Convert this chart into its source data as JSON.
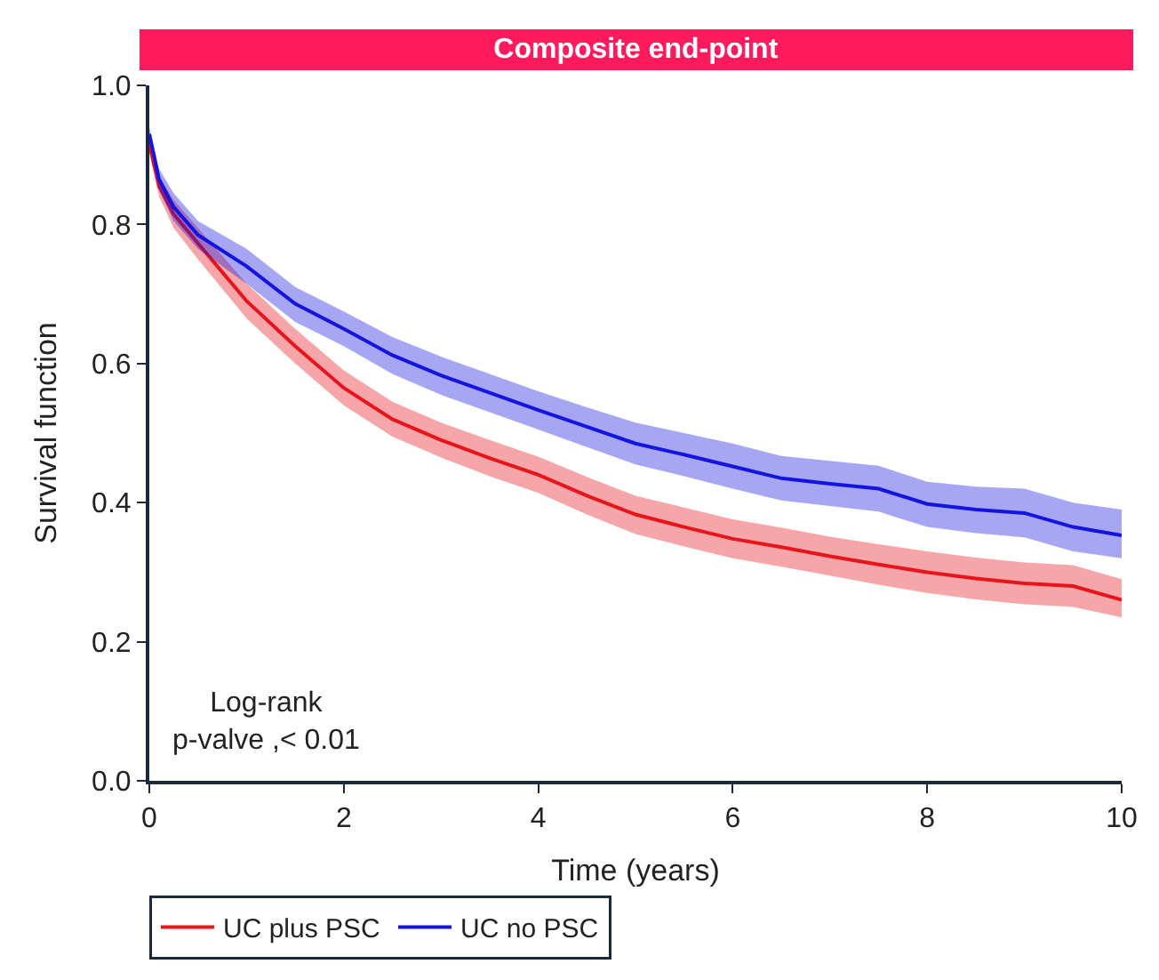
{
  "chart_data": {
    "type": "line",
    "title": "Composite end-point",
    "xlabel": "Time (years)",
    "ylabel": "Survival function",
    "x": [
      0,
      0.1,
      0.25,
      0.5,
      1,
      1.5,
      2,
      2.5,
      3,
      3.5,
      4,
      4.5,
      5,
      5.5,
      6,
      6.5,
      7,
      7.5,
      8,
      8.5,
      9,
      9.5,
      10
    ],
    "series": [
      {
        "name": "UC plus PSC",
        "color": "#e8141c",
        "values": [
          0.915,
          0.855,
          0.815,
          0.773,
          0.69,
          0.625,
          0.565,
          0.52,
          0.49,
          0.464,
          0.44,
          0.41,
          0.383,
          0.365,
          0.348,
          0.336,
          0.323,
          0.311,
          0.3,
          0.291,
          0.284,
          0.28,
          0.26
        ],
        "lower": [
          0.905,
          0.84,
          0.795,
          0.75,
          0.665,
          0.6,
          0.54,
          0.495,
          0.465,
          0.438,
          0.414,
          0.383,
          0.355,
          0.337,
          0.32,
          0.308,
          0.295,
          0.282,
          0.27,
          0.261,
          0.254,
          0.25,
          0.235
        ],
        "upper": [
          0.925,
          0.87,
          0.835,
          0.795,
          0.715,
          0.65,
          0.59,
          0.545,
          0.515,
          0.49,
          0.466,
          0.437,
          0.41,
          0.393,
          0.376,
          0.364,
          0.351,
          0.34,
          0.33,
          0.321,
          0.314,
          0.31,
          0.29
        ]
      },
      {
        "name": "UC no PSC",
        "color": "#1414e0",
        "values": [
          0.93,
          0.865,
          0.825,
          0.785,
          0.74,
          0.686,
          0.65,
          0.612,
          0.583,
          0.558,
          0.533,
          0.509,
          0.485,
          0.469,
          0.452,
          0.435,
          0.427,
          0.42,
          0.398,
          0.39,
          0.385,
          0.365,
          0.353
        ],
        "lower": [
          0.92,
          0.85,
          0.805,
          0.765,
          0.715,
          0.66,
          0.625,
          0.585,
          0.555,
          0.53,
          0.505,
          0.48,
          0.455,
          0.438,
          0.42,
          0.403,
          0.395,
          0.387,
          0.365,
          0.356,
          0.35,
          0.33,
          0.32
        ],
        "upper": [
          0.94,
          0.88,
          0.845,
          0.805,
          0.765,
          0.71,
          0.675,
          0.638,
          0.61,
          0.585,
          0.56,
          0.537,
          0.515,
          0.5,
          0.485,
          0.467,
          0.46,
          0.453,
          0.43,
          0.423,
          0.42,
          0.4,
          0.39
        ]
      }
    ],
    "xlim": [
      0,
      10
    ],
    "xticks": [
      0,
      2,
      4,
      6,
      8,
      10
    ],
    "ylim": [
      0,
      1
    ],
    "yticks": [
      {
        "value": 0,
        "label": "0.0"
      },
      {
        "value": 0.2,
        "label": "0.2"
      },
      {
        "value": 0.4,
        "label": "0.4"
      },
      {
        "value": 0.6,
        "label": "0.6"
      },
      {
        "value": 0.8,
        "label": "0.8"
      },
      {
        "value": 1,
        "label": "1.0"
      }
    ],
    "annotations": [
      "Log-rank\np-valve ,< 0.01"
    ],
    "legend": "bottom left",
    "marker": "none",
    "line_style": "solid"
  }
}
